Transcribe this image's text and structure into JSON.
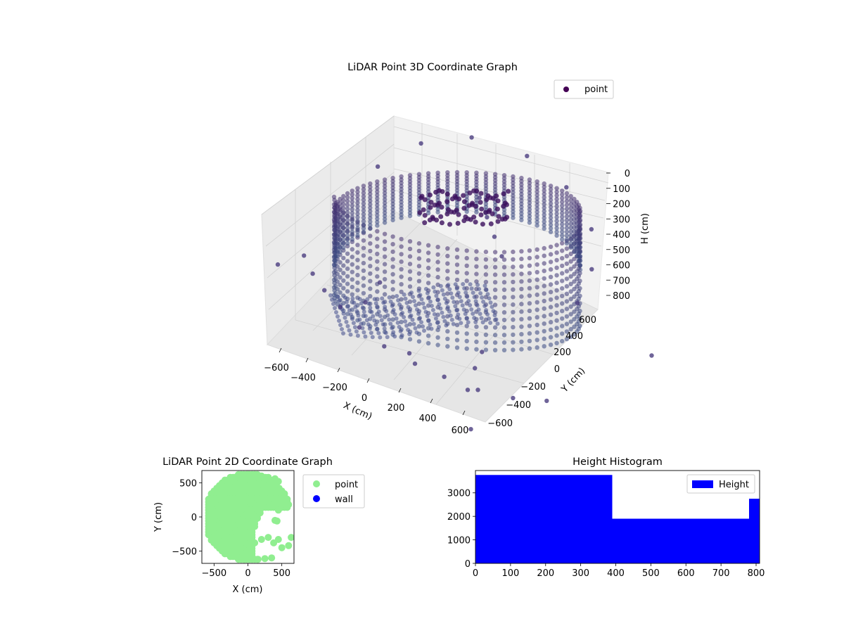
{
  "chart_data": [
    {
      "type": "scatter",
      "title": "LiDAR Point 3D Coordinate Graph",
      "xlabel": "X (cm)",
      "ylabel": "Y (cm)",
      "zlabel": "H (cm)",
      "xlim": [
        -700,
        700
      ],
      "ylim": [
        -700,
        700
      ],
      "zlim": [
        800,
        0
      ],
      "xticks": [
        -600,
        -400,
        -200,
        0,
        200,
        400,
        600
      ],
      "yticks": [
        -600,
        -400,
        -200,
        0,
        200,
        400,
        600
      ],
      "zticks": [
        0,
        100,
        200,
        300,
        400,
        500,
        600,
        700,
        800
      ],
      "legend": {
        "entries": [
          "point"
        ],
        "placement": "upper-right"
      },
      "colormap": "viridis",
      "colors": {
        "marker": "#46307a",
        "legend_marker": "#440154"
      },
      "series": [
        {
          "name": "point",
          "description_points": [
            [
              -650,
              -650,
              780
            ],
            [
              -620,
              -500,
              760
            ],
            [
              -500,
              -560,
              740
            ],
            [
              -380,
              -600,
              720
            ],
            [
              -250,
              -620,
              700
            ],
            [
              -100,
              -640,
              690
            ],
            [
              50,
              -620,
              690
            ],
            [
              200,
              -560,
              700
            ],
            [
              320,
              -480,
              720
            ],
            [
              450,
              -380,
              740
            ],
            [
              560,
              -250,
              760
            ],
            [
              640,
              -100,
              780
            ],
            [
              -600,
              0,
              300
            ],
            [
              -550,
              250,
              200
            ],
            [
              -400,
              450,
              100
            ],
            [
              -150,
              580,
              50
            ],
            [
              100,
              600,
              40
            ],
            [
              350,
              520,
              60
            ],
            [
              520,
              350,
              100
            ],
            [
              620,
              150,
              150
            ],
            [
              -150,
              250,
              200
            ],
            [
              -50,
              200,
              220
            ],
            [
              50,
              150,
              240
            ],
            [
              150,
              100,
              260
            ],
            [
              300,
              -200,
              700
            ],
            [
              350,
              -300,
              720
            ],
            [
              420,
              -420,
              750
            ],
            [
              600,
              -580,
              780
            ],
            [
              660,
              600,
              790
            ],
            [
              -300,
              -300,
              740
            ],
            [
              -250,
              -450,
              760
            ],
            [
              100,
              -500,
              760
            ]
          ]
        }
      ]
    },
    {
      "type": "scatter",
      "title": "LiDAR Point 2D Coordinate Graph",
      "xlabel": "X (cm)",
      "ylabel": "Y (cm)",
      "xlim": [
        -680,
        680
      ],
      "ylim": [
        -680,
        680
      ],
      "xticks": [
        -500,
        0,
        500
      ],
      "yticks": [
        -500,
        0,
        500
      ],
      "legend": {
        "entries": [
          "point",
          "wall"
        ],
        "placement": "outside-right"
      },
      "colors": {
        "point": "#90ee90",
        "wall": "#0000ff"
      },
      "series": [
        {
          "name": "point",
          "points": [
            [
              -560,
              -80
            ],
            [
              -540,
              -200
            ],
            [
              -520,
              100
            ],
            [
              -500,
              250
            ],
            [
              -480,
              -300
            ],
            [
              -450,
              380
            ],
            [
              -420,
              -420
            ],
            [
              -380,
              450
            ],
            [
              -350,
              -500
            ],
            [
              -300,
              520
            ],
            [
              -250,
              -560
            ],
            [
              -200,
              580
            ],
            [
              -150,
              -600
            ],
            [
              -100,
              600
            ],
            [
              -50,
              -620
            ],
            [
              0,
              620
            ],
            [
              50,
              -600
            ],
            [
              100,
              600
            ],
            [
              150,
              -620
            ],
            [
              200,
              600
            ],
            [
              250,
              -610
            ],
            [
              300,
              580
            ],
            [
              350,
              -600
            ],
            [
              400,
              560
            ],
            [
              450,
              520
            ],
            [
              -400,
              0
            ],
            [
              -300,
              100
            ],
            [
              -200,
              200
            ],
            [
              -100,
              300
            ],
            [
              0,
              400
            ],
            [
              100,
              450
            ],
            [
              200,
              480
            ],
            [
              300,
              420
            ],
            [
              -350,
              -200
            ],
            [
              -250,
              -300
            ],
            [
              -150,
              -350
            ],
            [
              -50,
              -250
            ],
            [
              50,
              -150
            ],
            [
              100,
              0
            ],
            [
              150,
              150
            ],
            [
              200,
              250
            ],
            [
              250,
              350
            ],
            [
              300,
              250
            ],
            [
              350,
              150
            ],
            [
              400,
              200
            ],
            [
              450,
              100
            ],
            [
              400,
              -50
            ],
            [
              500,
              180
            ],
            [
              550,
              200
            ],
            [
              600,
              180
            ],
            [
              430,
              -60
            ],
            [
              380,
              -380
            ],
            [
              450,
              -330
            ],
            [
              500,
              -450
            ],
            [
              600,
              -420
            ],
            [
              640,
              -300
            ],
            [
              0,
              -400
            ],
            [
              100,
              -380
            ],
            [
              200,
              -330
            ],
            [
              300,
              -300
            ],
            [
              -100,
              -450
            ],
            [
              -200,
              -480
            ],
            [
              -300,
              -420
            ],
            [
              -450,
              -150
            ],
            [
              -500,
              50
            ],
            [
              0,
              100
            ],
            [
              0,
              0
            ],
            [
              -100,
              100
            ],
            [
              -200,
              0
            ],
            [
              -300,
              -100
            ]
          ]
        },
        {
          "name": "wall",
          "points": []
        }
      ]
    },
    {
      "type": "bar",
      "title": "Height Histogram",
      "xlabel": "",
      "ylabel": "",
      "xlim": [
        0,
        810
      ],
      "ylim": [
        0,
        3950
      ],
      "xticks": [
        0,
        100,
        200,
        300,
        400,
        500,
        600,
        700,
        800
      ],
      "yticks": [
        0,
        1000,
        2000,
        3000
      ],
      "legend": {
        "entries": [
          "Height"
        ],
        "placement": "upper-right"
      },
      "colors": {
        "bar": "#0000ff"
      },
      "series": [
        {
          "name": "Height",
          "bins": [
            {
              "start": 0,
              "end": 390,
              "count": 3760
            },
            {
              "start": 390,
              "end": 780,
              "count": 1900
            },
            {
              "start": 780,
              "end": 810,
              "count": 2750
            }
          ]
        }
      ]
    }
  ]
}
